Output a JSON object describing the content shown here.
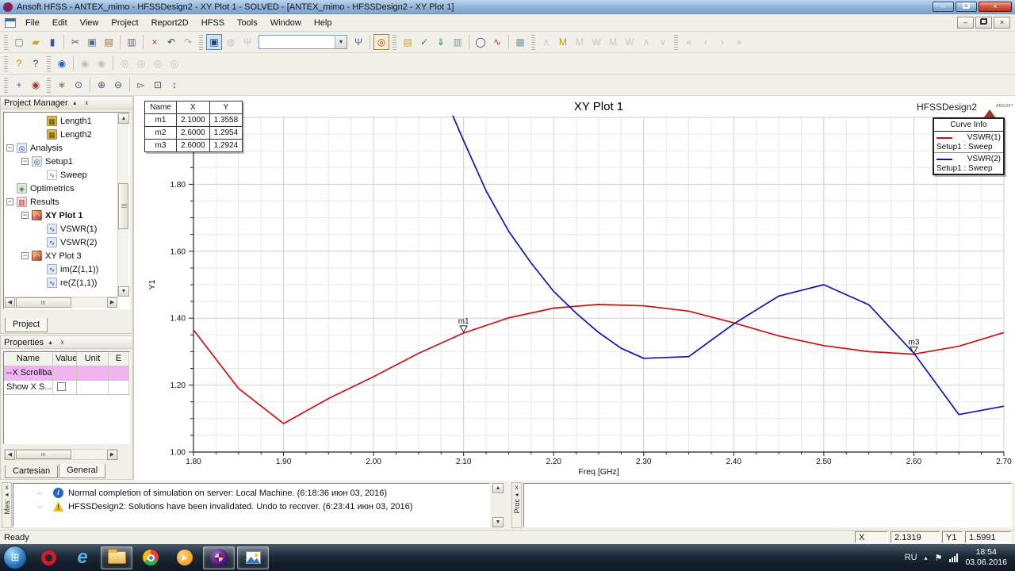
{
  "window": {
    "title": "Ansoft HFSS - ANTEX_mimo - HFSSDesign2 - XY Plot 1 - SOLVED - [ANTEX_mimo - HFSSDesign2 - XY Plot 1]",
    "minimize_glyph": "–",
    "close_glyph": "×"
  },
  "menubar": {
    "items": [
      "File",
      "Edit",
      "View",
      "Project",
      "Report2D",
      "HFSS",
      "Tools",
      "Window",
      "Help"
    ]
  },
  "toolbars": {
    "row1": [
      {
        "t": "grip"
      },
      {
        "t": "btn",
        "name": "new-file-icon",
        "glyph": "▢",
        "color": "#667788"
      },
      {
        "t": "btn",
        "name": "open-file-icon",
        "glyph": "▰",
        "color": "#c9a227"
      },
      {
        "t": "btn",
        "name": "save-icon",
        "glyph": "▮",
        "color": "#3a57a7"
      },
      {
        "t": "sep"
      },
      {
        "t": "btn",
        "name": "cut-icon",
        "glyph": "✂",
        "color": "#555566"
      },
      {
        "t": "btn",
        "name": "copy-icon",
        "glyph": "▣",
        "color": "#556699"
      },
      {
        "t": "btn",
        "name": "paste-icon",
        "glyph": "▤",
        "color": "#9a6b3f"
      },
      {
        "t": "sep"
      },
      {
        "t": "btn",
        "name": "print-icon",
        "glyph": "▥",
        "color": "#667"
      },
      {
        "t": "sep"
      },
      {
        "t": "btn",
        "name": "delete-icon",
        "glyph": "×",
        "color": "#bb3333"
      },
      {
        "t": "btn",
        "name": "undo-icon",
        "glyph": "↶",
        "color": "#334455"
      },
      {
        "t": "btn",
        "name": "redo-icon",
        "glyph": "↷",
        "color": "#334455",
        "state": "disabled"
      },
      {
        "t": "grip"
      },
      {
        "t": "btn",
        "name": "active-view-icon",
        "glyph": "▣",
        "color": "#1b3f8f",
        "state": "active"
      },
      {
        "t": "btn",
        "name": "solve-ports-icon",
        "glyph": "◍",
        "color": "#777",
        "state": "disabled"
      },
      {
        "t": "btn",
        "name": "solution-branch-icon",
        "glyph": "Ψ",
        "color": "#778",
        "state": "disabled"
      },
      {
        "t": "combo",
        "name": "design-variation-combobox",
        "value": ""
      },
      {
        "t": "btn",
        "name": "parametric-branch-icon",
        "glyph": "Ψ",
        "color": "#5566aa"
      },
      {
        "t": "sep"
      },
      {
        "t": "btn",
        "name": "solution-type-icon",
        "glyph": "◎",
        "color": "#c44400",
        "state": "framed"
      },
      {
        "t": "grip"
      },
      {
        "t": "btn",
        "name": "edit-sources-icon",
        "glyph": "▤",
        "color": "#c9a52a"
      },
      {
        "t": "btn",
        "name": "validate-icon",
        "glyph": "✓",
        "color": "#2c8f2c"
      },
      {
        "t": "btn",
        "name": "analyze-all-icon",
        "glyph": "⇓",
        "color": "#2c8f2c"
      },
      {
        "t": "btn",
        "name": "solution-data-icon",
        "glyph": "▥",
        "color": "#8899aa"
      },
      {
        "t": "sep"
      },
      {
        "t": "btn",
        "name": "optimetrics-view-icon",
        "glyph": "◯",
        "color": "#334477"
      },
      {
        "t": "btn",
        "name": "create-report-icon",
        "glyph": "∿",
        "color": "#cc2222"
      },
      {
        "t": "sep"
      },
      {
        "t": "btn",
        "name": "report-template-icon",
        "glyph": "▦",
        "color": "#7799aa"
      },
      {
        "t": "grip"
      },
      {
        "t": "btn",
        "name": "add-marker-icon",
        "glyph": "∧",
        "color": "#888",
        "state": "disabled"
      },
      {
        "t": "btn",
        "name": "add-max-marker-icon",
        "glyph": "M",
        "color": "#b8a000"
      },
      {
        "t": "btn",
        "name": "marker-max-icon",
        "glyph": "M",
        "color": "#888",
        "state": "disabled"
      },
      {
        "t": "btn",
        "name": "marker-min-icon",
        "glyph": "W",
        "color": "#888",
        "state": "disabled"
      },
      {
        "t": "btn",
        "name": "marker-next-max-icon",
        "glyph": "M",
        "color": "#888",
        "state": "disabled"
      },
      {
        "t": "btn",
        "name": "marker-next-min-icon",
        "glyph": "W",
        "color": "#888",
        "state": "disabled"
      },
      {
        "t": "btn",
        "name": "marker-peak-icon",
        "glyph": "∧",
        "color": "#888",
        "state": "disabled"
      },
      {
        "t": "btn",
        "name": "marker-valley-icon",
        "glyph": "∨",
        "color": "#888",
        "state": "disabled"
      },
      {
        "t": "grip"
      },
      {
        "t": "btn",
        "name": "first-trace-icon",
        "glyph": "«",
        "color": "#667",
        "state": "disabled"
      },
      {
        "t": "btn",
        "name": "prev-trace-icon",
        "glyph": "‹",
        "color": "#667",
        "state": "disabled"
      },
      {
        "t": "btn",
        "name": "next-trace-icon",
        "glyph": "›",
        "color": "#667",
        "state": "disabled"
      },
      {
        "t": "btn",
        "name": "last-trace-icon",
        "glyph": "»",
        "color": "#667",
        "state": "disabled"
      }
    ],
    "row2": [
      {
        "t": "grip"
      },
      {
        "t": "btn",
        "name": "help-topics-icon",
        "glyph": "?",
        "color": "#b58b00"
      },
      {
        "t": "btn",
        "name": "context-help-icon",
        "glyph": "?",
        "color": "#223366"
      },
      {
        "t": "grip"
      },
      {
        "t": "btn",
        "name": "show-all-icon",
        "glyph": "◉",
        "color": "#1b5fbf"
      },
      {
        "t": "sep"
      },
      {
        "t": "btn",
        "name": "hide-all-icon",
        "glyph": "◉",
        "color": "#777",
        "state": "disabled"
      },
      {
        "t": "btn",
        "name": "hide-selected-icon",
        "glyph": "◉",
        "color": "#777",
        "state": "disabled"
      },
      {
        "t": "sep"
      },
      {
        "t": "btn",
        "name": "show-active-icon",
        "glyph": "◎",
        "color": "#777",
        "state": "disabled"
      },
      {
        "t": "btn",
        "name": "hide-active-icon",
        "glyph": "◎",
        "color": "#777",
        "state": "disabled"
      },
      {
        "t": "btn",
        "name": "show-selection-icon",
        "glyph": "◎",
        "color": "#777",
        "state": "disabled"
      },
      {
        "t": "btn",
        "name": "hide-selection-icon",
        "glyph": "◎",
        "color": "#777",
        "state": "disabled"
      }
    ],
    "row3": [
      {
        "t": "grip"
      },
      {
        "t": "btn",
        "name": "move-3d-icon",
        "glyph": "+",
        "color": "#3b62c9"
      },
      {
        "t": "btn",
        "name": "orbit-3d-icon",
        "glyph": "◉",
        "color": "#aa3333"
      },
      {
        "t": "grip"
      },
      {
        "t": "btn",
        "name": "pan-icon",
        "glyph": "∗",
        "color": "#996633"
      },
      {
        "t": "btn",
        "name": "zoom-100-icon",
        "glyph": "⊙",
        "color": "#445577"
      },
      {
        "t": "sep"
      },
      {
        "t": "btn",
        "name": "zoom-in-rect-icon",
        "glyph": "⊕",
        "color": "#445577"
      },
      {
        "t": "btn",
        "name": "zoom-out-rect-icon",
        "glyph": "⊖",
        "color": "#445577"
      },
      {
        "t": "sep"
      },
      {
        "t": "btn",
        "name": "fit-all-icon",
        "glyph": "▻",
        "color": "#445577"
      },
      {
        "t": "btn",
        "name": "fit-selection-icon",
        "glyph": "⊡",
        "color": "#445577"
      },
      {
        "t": "btn",
        "name": "scale-axes-icon",
        "glyph": "↕",
        "color": "#aa3333"
      }
    ]
  },
  "project_manager": {
    "title": "Project Manager",
    "tab": "Project",
    "collapse_glyph": "▴",
    "close_glyph": "x",
    "items": [
      {
        "label": "Length1",
        "indent": 3,
        "icon": "variable"
      },
      {
        "label": "Length2",
        "indent": 3,
        "icon": "variable"
      },
      {
        "label": "Analysis",
        "indent": 1,
        "icon": "analysis",
        "expander": "−"
      },
      {
        "label": "Setup1",
        "indent": 2,
        "icon": "analysis",
        "expander": "−"
      },
      {
        "label": "Sweep",
        "indent": 3,
        "icon": "sweep"
      },
      {
        "label": "Optimetrics",
        "indent": 1,
        "icon": "optimetrics"
      },
      {
        "label": "Results",
        "indent": 1,
        "icon": "results",
        "expander": "−"
      },
      {
        "label": "XY Plot 1",
        "indent": 2,
        "icon": "plot",
        "expander": "−",
        "bold": true
      },
      {
        "label": "VSWR(1)",
        "indent": 3,
        "icon": "trace"
      },
      {
        "label": "VSWR(2)",
        "indent": 3,
        "icon": "trace"
      },
      {
        "label": "XY Plot 3",
        "indent": 2,
        "icon": "plot",
        "expander": "−"
      },
      {
        "label": "im(Z(1,1))",
        "indent": 3,
        "icon": "trace"
      },
      {
        "label": "re(Z(1,1))",
        "indent": 3,
        "icon": "trace"
      }
    ]
  },
  "properties": {
    "title": "Properties",
    "headers": [
      "Name",
      "Value",
      "Unit",
      "E"
    ],
    "rows": [
      {
        "name": "--X Scrollbar",
        "highlight": true
      },
      {
        "name": "Show X S...",
        "checkbox": true
      }
    ],
    "tabs": [
      "Cartesian",
      "General"
    ]
  },
  "plot_header": {
    "design_name": "HFSSDesign2",
    "logo_text": "ANSOFT"
  },
  "marker_table": {
    "headers": [
      "Name",
      "X",
      "Y"
    ],
    "rows": [
      [
        "m1",
        "2.1000",
        "1.3558"
      ],
      [
        "m2",
        "2.6000",
        "1.2954"
      ],
      [
        "m3",
        "2.6000",
        "1.2924"
      ]
    ]
  },
  "legend": {
    "title": "Curve Info",
    "entries": [
      {
        "name": "VSWR(1)",
        "sub": "Setup1 : Sweep",
        "color": "#cc1111"
      },
      {
        "name": "VSWR(2)",
        "sub": "Setup1 : Sweep",
        "color": "#1111bb"
      }
    ]
  },
  "chart_data": {
    "type": "line",
    "title": "XY Plot 1",
    "xlabel": "Freq [GHz]",
    "ylabel": "Y1",
    "xlim": [
      1.8,
      2.7
    ],
    "ylim": [
      1.0,
      2.0
    ],
    "x_major": 0.1,
    "x_minor": 0.025,
    "y_major": 0.2,
    "y_minor": 0.05,
    "x_ticks": [
      "1.80",
      "1.90",
      "2.00",
      "2.10",
      "2.20",
      "2.30",
      "2.40",
      "2.50",
      "2.60",
      "2.70"
    ],
    "y_ticks": [
      "1.00",
      "1.20",
      "1.40",
      "1.60",
      "1.80"
    ],
    "grid": true,
    "legend_position": "top-right",
    "series": [
      {
        "name": "VSWR(1)",
        "setup": "Setup1 : Sweep",
        "color": "#cc1111",
        "points": [
          [
            1.8,
            1.365
          ],
          [
            1.85,
            1.19
          ],
          [
            1.9,
            1.085
          ],
          [
            1.95,
            1.16
          ],
          [
            2.0,
            1.225
          ],
          [
            2.05,
            1.295
          ],
          [
            2.1,
            1.3558
          ],
          [
            2.15,
            1.401
          ],
          [
            2.2,
            1.43
          ],
          [
            2.25,
            1.441
          ],
          [
            2.3,
            1.437
          ],
          [
            2.35,
            1.421
          ],
          [
            2.4,
            1.386
          ],
          [
            2.45,
            1.347
          ],
          [
            2.5,
            1.318
          ],
          [
            2.55,
            1.3
          ],
          [
            2.6,
            1.2924
          ],
          [
            2.65,
            1.316
          ],
          [
            2.7,
            1.357
          ]
        ]
      },
      {
        "name": "VSWR(2)",
        "setup": "Setup1 : Sweep",
        "color": "#1111bb",
        "points": [
          [
            2.088,
            2.005
          ],
          [
            2.1,
            1.93
          ],
          [
            2.125,
            1.78
          ],
          [
            2.15,
            1.66
          ],
          [
            2.175,
            1.565
          ],
          [
            2.2,
            1.48
          ],
          [
            2.225,
            1.415
          ],
          [
            2.25,
            1.357
          ],
          [
            2.275,
            1.31
          ],
          [
            2.3,
            1.28
          ],
          [
            2.35,
            1.285
          ],
          [
            2.4,
            1.383
          ],
          [
            2.45,
            1.466
          ],
          [
            2.5,
            1.5
          ],
          [
            2.55,
            1.44
          ],
          [
            2.6,
            1.2954
          ],
          [
            2.65,
            1.112
          ],
          [
            2.7,
            1.137
          ]
        ]
      }
    ],
    "markers": [
      {
        "id": "m1",
        "x": 2.1,
        "y": 1.3558
      },
      {
        "id": "m3",
        "x": 2.6,
        "y": 1.2924
      }
    ]
  },
  "messages": {
    "tab_label": "Mes:",
    "close_glyph": "x",
    "dock_glyph": "◂",
    "items": [
      {
        "icon": "info",
        "glyph": "i",
        "text": "Normal completion of simulation on server: Local Machine. (6:18:36 июн 03, 2016)"
      },
      {
        "icon": "warning",
        "glyph": "!",
        "text": "HFSSDesign2: Solutions have been invalidated. Undo to recover. (6:23:41 июн 03, 2016)"
      }
    ]
  },
  "progress": {
    "tab_label": "Proc"
  },
  "status": {
    "ready": "Ready",
    "x_label": "X",
    "x_value": "2.1319",
    "y1_label": "Y1",
    "y1_value": "1.5991"
  },
  "tray": {
    "lang": "RU",
    "time": "18:54",
    "date": "03.06.2016"
  },
  "colors": {
    "titlebar": "#8fb2d8",
    "curve1": "#cc1111",
    "curve2": "#1111bb",
    "property_highlight": "#f2b3f2",
    "active_tool": "#cfe3f7",
    "taskbar": "#1c2936"
  }
}
